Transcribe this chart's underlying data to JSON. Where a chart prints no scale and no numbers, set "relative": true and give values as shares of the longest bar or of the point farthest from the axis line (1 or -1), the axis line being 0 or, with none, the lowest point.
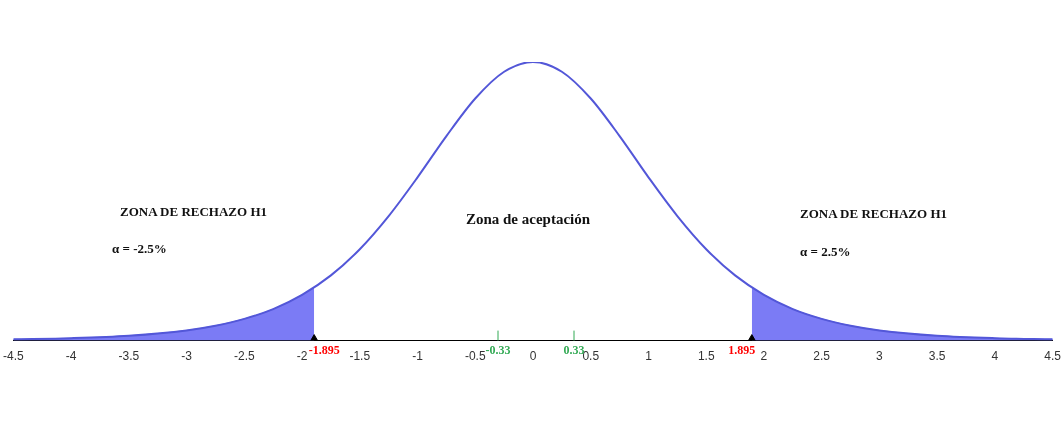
{
  "chart_data": {
    "type": "line",
    "relative": true,
    "xlim": [
      -4.5,
      4.5
    ],
    "xticks": [
      -4.5,
      -4,
      -3.5,
      -3,
      -2.5,
      -2,
      -1.5,
      -1,
      -0.5,
      0,
      0.5,
      1,
      1.5,
      2,
      2.5,
      3,
      3.5,
      4,
      4.5
    ],
    "grid": false,
    "legend": false,
    "tick_labels": "x",
    "series": [
      {
        "type": "area",
        "color": "#7b7bf5",
        "x": [
          -4.5,
          -4,
          -3.5,
          -3,
          -2.75,
          -2.5,
          -2.25,
          -2,
          -1.895
        ],
        "values": [
          0.0044,
          0.0086,
          0.0175,
          0.0366,
          0.0534,
          0.078,
          0.113,
          0.164,
          0.191
        ]
      },
      {
        "type": "area",
        "color": "#7b7bf5",
        "x": [
          1.895,
          2,
          2.25,
          2.5,
          2.75,
          3,
          3.5,
          4,
          4.5
        ],
        "values": [
          0.191,
          0.164,
          0.113,
          0.078,
          0.0534,
          0.0366,
          0.0175,
          0.0086,
          0.0044
        ]
      },
      {
        "color": "#5357d8",
        "x": [
          -4.5,
          -4,
          -3.5,
          -3,
          -2.75,
          -2.5,
          -2.25,
          -2,
          -1.75,
          -1.5,
          -1.25,
          -1,
          -0.75,
          -0.5,
          -0.25,
          0,
          0.25,
          0.5,
          0.75,
          1,
          1.25,
          1.5,
          1.75,
          2,
          2.25,
          2.5,
          2.75,
          3,
          3.5,
          4,
          4.5
        ],
        "values": [
          0.0044,
          0.0086,
          0.0175,
          0.0366,
          0.0534,
          0.078,
          0.113,
          0.164,
          0.234,
          0.328,
          0.447,
          0.586,
          0.734,
          0.869,
          0.965,
          1,
          0.965,
          0.869,
          0.734,
          0.586,
          0.447,
          0.328,
          0.234,
          0.164,
          0.113,
          0.078,
          0.0534,
          0.0366,
          0.0175,
          0.0086,
          0.0044
        ]
      },
      {
        "type": "scatter",
        "color": "#000000",
        "marker": "triangle",
        "x": [
          -1.895,
          1.895
        ],
        "values": [
          0,
          0
        ]
      }
    ],
    "annotations": [
      "ZONA DE RECHAZO H1",
      "α = -2.5%",
      "Zona de aceptación",
      "ZONA DE RECHAZO H1",
      "α = 2.5%",
      "-0.33",
      "0.33",
      {
        "text": "-1.895",
        "x": -1.895,
        "y": 0
      },
      {
        "text": "1.895",
        "x": 1.895,
        "y": 0
      }
    ]
  }
}
